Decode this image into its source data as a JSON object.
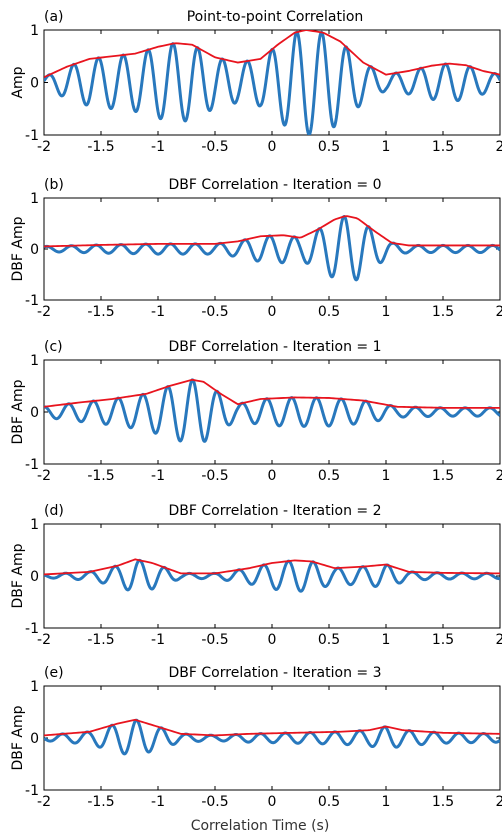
{
  "figure": {
    "xlabel": "Correlation Time (s)"
  },
  "chart_data": [
    {
      "type": "line",
      "panel_label": "(a)",
      "title": "Point-to-point Correlation",
      "ylabel": "Amp",
      "xlim": [
        -2,
        2
      ],
      "ylim": [
        -1,
        1
      ],
      "xticks": [
        -2,
        -1.5,
        -1,
        -0.5,
        0,
        0.5,
        1,
        1.5,
        2
      ],
      "xtick_labels": [
        "-2",
        "-1.5",
        "-1",
        "-0.5",
        "0",
        "0.5",
        "1",
        "1.5",
        "2"
      ],
      "yticks": [
        -1,
        0,
        1
      ],
      "ytick_labels": [
        "-1",
        "0",
        "1"
      ],
      "colors": {
        "correlation": "#2878bd",
        "envelope": "#e8141e"
      },
      "osc_freq": 4.6,
      "osc_phase": 0.0,
      "envelope": {
        "x": [
          -2.0,
          -1.8,
          -1.6,
          -1.4,
          -1.2,
          -1.0,
          -0.85,
          -0.7,
          -0.5,
          -0.3,
          -0.1,
          0.05,
          0.2,
          0.3,
          0.45,
          0.6,
          0.8,
          1.0,
          1.2,
          1.4,
          1.55,
          1.7,
          1.85,
          2.0
        ],
        "y": [
          0.1,
          0.3,
          0.45,
          0.5,
          0.55,
          0.68,
          0.75,
          0.72,
          0.48,
          0.38,
          0.45,
          0.72,
          0.95,
          1.0,
          0.95,
          0.78,
          0.38,
          0.15,
          0.22,
          0.32,
          0.36,
          0.33,
          0.22,
          0.15
        ]
      }
    },
    {
      "type": "line",
      "panel_label": "(b)",
      "title": "DBF Correlation - Iteration = 0",
      "ylabel": "DBF Amp",
      "xlim": [
        -2,
        2
      ],
      "ylim": [
        -1,
        1
      ],
      "xticks": [
        -2,
        -1.5,
        -1,
        -0.5,
        0,
        0.5,
        1,
        1.5,
        2
      ],
      "xtick_labels": [
        "-2",
        "-1.5",
        "-1",
        "-0.5",
        "0",
        "0.5",
        "1",
        "1.5",
        "2"
      ],
      "yticks": [
        -1,
        0,
        1
      ],
      "ytick_labels": [
        "-1",
        "0",
        "1"
      ],
      "colors": {
        "correlation": "#2878bd",
        "envelope": "#e8141e"
      },
      "osc_freq": 4.6,
      "osc_phase": 0.6,
      "envelope": {
        "x": [
          -2.0,
          -1.5,
          -1.0,
          -0.5,
          -0.3,
          -0.1,
          0.1,
          0.25,
          0.4,
          0.55,
          0.65,
          0.75,
          0.9,
          1.05,
          1.2,
          1.5,
          2.0
        ],
        "y": [
          0.05,
          0.08,
          0.1,
          0.1,
          0.15,
          0.25,
          0.27,
          0.22,
          0.38,
          0.58,
          0.65,
          0.6,
          0.35,
          0.12,
          0.07,
          0.07,
          0.07
        ]
      }
    },
    {
      "type": "line",
      "panel_label": "(c)",
      "title": "DBF Correlation - Iteration = 1",
      "ylabel": "DBF Amp",
      "xlim": [
        -2,
        2
      ],
      "ylim": [
        -1,
        1
      ],
      "xticks": [
        -2,
        -1.5,
        -1,
        -0.5,
        0,
        0.5,
        1,
        1.5,
        2
      ],
      "xtick_labels": [
        "-2",
        "-1.5",
        "-1",
        "-0.5",
        "0",
        "0.5",
        "1",
        "1.5",
        "2"
      ],
      "yticks": [
        -1,
        0,
        1
      ],
      "ytick_labels": [
        "-1",
        "0",
        "1"
      ],
      "colors": {
        "correlation": "#2878bd",
        "envelope": "#e8141e"
      },
      "osc_freq": 4.6,
      "osc_phase": 1.3,
      "envelope": {
        "x": [
          -2.0,
          -1.7,
          -1.4,
          -1.1,
          -0.9,
          -0.7,
          -0.6,
          -0.45,
          -0.3,
          -0.1,
          0.2,
          0.5,
          0.8,
          1.1,
          1.5,
          2.0
        ],
        "y": [
          0.1,
          0.18,
          0.25,
          0.35,
          0.5,
          0.62,
          0.58,
          0.35,
          0.15,
          0.25,
          0.28,
          0.27,
          0.22,
          0.1,
          0.08,
          0.08
        ]
      }
    },
    {
      "type": "line",
      "panel_label": "(d)",
      "title": "DBF Correlation - Iteration = 2",
      "ylabel": "DBF Amp",
      "xlim": [
        -2,
        2
      ],
      "ylim": [
        -1,
        1
      ],
      "xticks": [
        -2,
        -1.5,
        -1,
        -0.5,
        0,
        0.5,
        1,
        1.5,
        2
      ],
      "xtick_labels": [
        "-2",
        "-1.5",
        "-1",
        "-0.5",
        "0",
        "0.5",
        "1",
        "1.5",
        "2"
      ],
      "yticks": [
        -1,
        0,
        1
      ],
      "ytick_labels": [
        "-1",
        "0",
        "1"
      ],
      "colors": {
        "correlation": "#2878bd",
        "envelope": "#e8141e"
      },
      "osc_freq": 4.6,
      "osc_phase": 2.1,
      "envelope": {
        "x": [
          -2.0,
          -1.6,
          -1.35,
          -1.2,
          -1.05,
          -0.8,
          -0.5,
          -0.2,
          0.0,
          0.2,
          0.35,
          0.55,
          0.8,
          1.0,
          1.2,
          1.5,
          2.0
        ],
        "y": [
          0.03,
          0.08,
          0.2,
          0.32,
          0.25,
          0.05,
          0.05,
          0.15,
          0.25,
          0.3,
          0.28,
          0.15,
          0.18,
          0.22,
          0.08,
          0.06,
          0.05
        ]
      }
    },
    {
      "type": "line",
      "panel_label": "(e)",
      "title": "DBF Correlation - Iteration = 3",
      "ylabel": "DBF Amp",
      "xlim": [
        -2,
        2
      ],
      "ylim": [
        -1,
        1
      ],
      "xticks": [
        -2,
        -1.5,
        -1,
        -0.5,
        0,
        0.5,
        1,
        1.5,
        2
      ],
      "xtick_labels": [
        "-2",
        "-1.5",
        "-1",
        "-0.5",
        "0",
        "0.5",
        "1",
        "1.5",
        "2"
      ],
      "yticks": [
        -1,
        0,
        1
      ],
      "ytick_labels": [
        "-1",
        "0",
        "1"
      ],
      "colors": {
        "correlation": "#2878bd",
        "envelope": "#e8141e"
      },
      "osc_freq": 4.6,
      "osc_phase": 2.9,
      "envelope": {
        "x": [
          -2.0,
          -1.6,
          -1.35,
          -1.2,
          -1.05,
          -0.8,
          -0.5,
          -0.2,
          0.2,
          0.6,
          0.85,
          1.0,
          1.15,
          1.5,
          2.0
        ],
        "y": [
          0.05,
          0.12,
          0.28,
          0.35,
          0.25,
          0.08,
          0.05,
          0.08,
          0.1,
          0.12,
          0.15,
          0.22,
          0.15,
          0.1,
          0.08
        ]
      }
    }
  ]
}
